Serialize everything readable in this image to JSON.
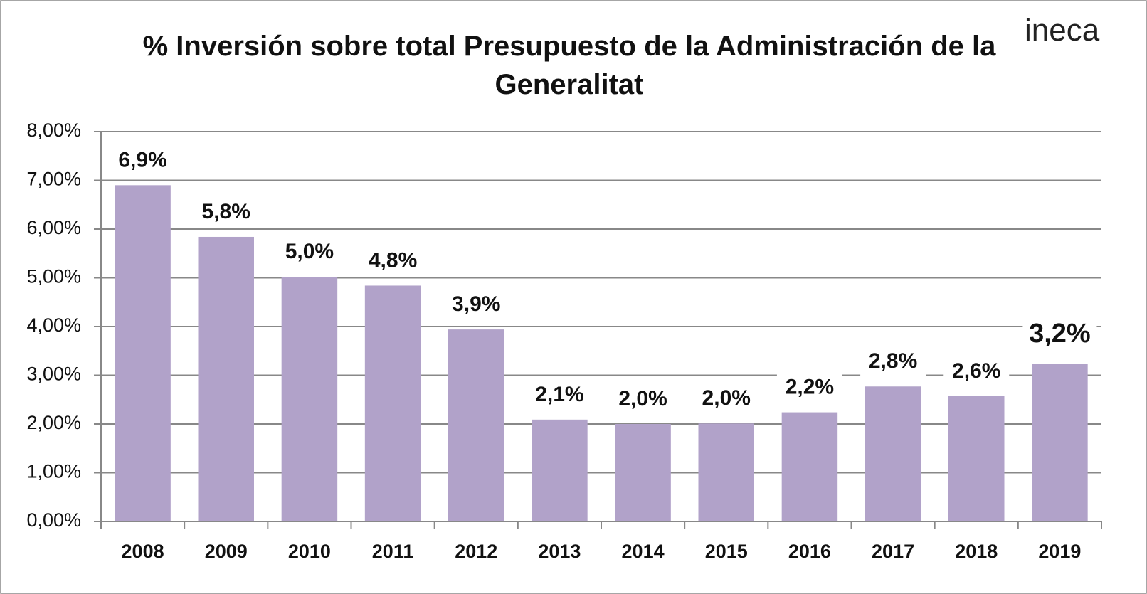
{
  "chart_data": {
    "type": "bar",
    "title": "% Inversión sobre total Presupuesto de la Administración de la Generalitat",
    "logo": "ineca",
    "categories": [
      "2008",
      "2009",
      "2010",
      "2011",
      "2012",
      "2013",
      "2014",
      "2015",
      "2016",
      "2017",
      "2018",
      "2019"
    ],
    "values": [
      6.9,
      5.84,
      5.02,
      4.84,
      3.94,
      2.09,
      2.0,
      2.01,
      2.24,
      2.77,
      2.57,
      3.24
    ],
    "value_labels": [
      "6,9%",
      "5,8%",
      "5,0%",
      "4,8%",
      "3,9%",
      "2,1%",
      "2,0%",
      "2,0%",
      "2,2%",
      "2,8%",
      "2,6%",
      "3,2%"
    ],
    "color": "#b1a2c9",
    "ylim": [
      0,
      8
    ],
    "yticks": [
      {
        "value": 0,
        "label": "0,00%"
      },
      {
        "value": 1,
        "label": "1,00%"
      },
      {
        "value": 2,
        "label": "2,00%"
      },
      {
        "value": 3,
        "label": "3,00%"
      },
      {
        "value": 4,
        "label": "4,00%"
      },
      {
        "value": 5,
        "label": "5,00%"
      },
      {
        "value": 6,
        "label": "6,00%"
      },
      {
        "value": 7,
        "label": "7,00%"
      },
      {
        "value": 8,
        "label": "8,00%"
      }
    ],
    "grid": true
  }
}
